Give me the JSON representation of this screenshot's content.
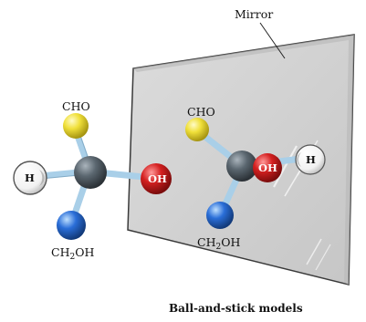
{
  "mirror_label": "Mirror",
  "caption": "Ball-and-stick models",
  "left_molecule": {
    "top_group": "CHO",
    "left_atom": "H",
    "right_atom": "OH",
    "bottom_group_main": "CH",
    "bottom_group_sub": "2",
    "bottom_group_tail": "OH"
  },
  "right_molecule": {
    "top_group": "CHO",
    "center_front_atom": "OH",
    "right_atom": "H",
    "bottom_group_main": "CH",
    "bottom_group_sub": "2",
    "bottom_group_tail": "OH"
  },
  "colors": {
    "carbon": "#4c5760",
    "cho": "#f0e03a",
    "oh": "#cc1e1e",
    "ch2oh": "#2a6ed8",
    "h": "#ffffff",
    "bond": "#a9cfe8",
    "mirror": "#d2d2d2"
  }
}
